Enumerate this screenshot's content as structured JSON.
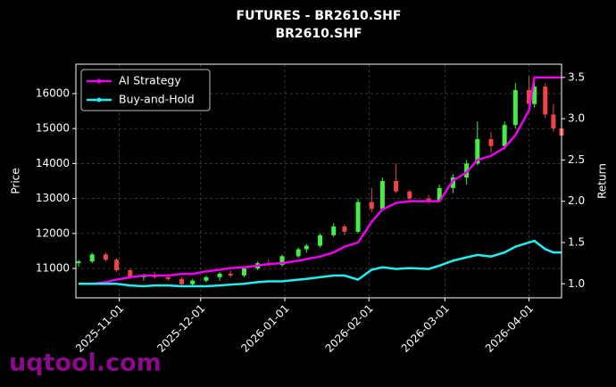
{
  "chart_data": {
    "type": "candlestick",
    "title": "FUTURES - BR2610.SHF",
    "subtitle": "BR2610.SHF",
    "y_label": "Price",
    "y2_label": "Return",
    "watermark": "uqtool.com",
    "x": [
      "2025-10-17",
      "2025-10-22",
      "2025-10-27",
      "2025-10-31",
      "2025-11-05",
      "2025-11-10",
      "2025-11-14",
      "2025-11-19",
      "2025-11-24",
      "2025-11-28",
      "2025-12-03",
      "2025-12-08",
      "2025-12-12",
      "2025-12-17",
      "2025-12-22",
      "2025-12-26",
      "2025-12-31",
      "2026-01-06",
      "2026-01-09",
      "2026-01-14",
      "2026-01-19",
      "2026-01-23",
      "2026-01-28",
      "2026-02-02",
      "2026-02-06",
      "2026-02-11",
      "2026-02-16",
      "2026-02-23",
      "2026-02-27",
      "2026-03-04",
      "2026-03-09",
      "2026-03-13",
      "2026-03-18",
      "2026-03-23",
      "2026-03-27",
      "2026-04-01",
      "2026-04-03",
      "2026-04-07",
      "2026-04-10",
      "2026-04-13"
    ],
    "open": [
      11150,
      11200,
      11400,
      11250,
      10950,
      10750,
      10800,
      10750,
      10700,
      10550,
      10650,
      10750,
      10850,
      10800,
      11000,
      11150,
      11100,
      11350,
      11550,
      11650,
      11950,
      12200,
      12050,
      12900,
      12700,
      13500,
      13200,
      13000,
      12950,
      13300,
      13600,
      14000,
      14700,
      14500,
      15100,
      16100,
      15700,
      16200,
      15400,
      15000
    ],
    "high": [
      11250,
      11450,
      11450,
      11300,
      11000,
      10850,
      10900,
      10850,
      10750,
      10700,
      10800,
      10900,
      10950,
      11050,
      11200,
      11250,
      11400,
      11600,
      11700,
      12000,
      12300,
      12250,
      13000,
      13300,
      13600,
      14000,
      13250,
      13100,
      13400,
      13700,
      14100,
      15200,
      14900,
      15200,
      16300,
      16500,
      16300,
      16300,
      15700,
      15100
    ],
    "low": [
      11050,
      11150,
      11200,
      10900,
      10700,
      10650,
      10700,
      10650,
      10500,
      10500,
      10600,
      10650,
      10750,
      10750,
      10950,
      11050,
      11050,
      11300,
      11450,
      11600,
      11900,
      11950,
      12000,
      12600,
      12650,
      13150,
      12900,
      12850,
      12900,
      13150,
      13400,
      13950,
      14300,
      14400,
      15000,
      15500,
      15600,
      15300,
      14900,
      14700
    ],
    "close": [
      11200,
      11400,
      11250,
      10950,
      10750,
      10800,
      10750,
      10700,
      10550,
      10650,
      10750,
      10850,
      10800,
      11000,
      11150,
      11100,
      11350,
      11550,
      11650,
      11950,
      12200,
      12050,
      12900,
      12700,
      13500,
      13200,
      13000,
      12950,
      13300,
      13600,
      14000,
      14700,
      14500,
      15100,
      16100,
      15700,
      16200,
      15400,
      15000,
      14800
    ],
    "up_color": "#44ee44",
    "down_color": "#ee4444",
    "series": [
      {
        "name": "AI Strategy",
        "color": "#ee00ee",
        "axis": "y2",
        "values": [
          1.0,
          1.0,
          1.02,
          1.05,
          1.08,
          1.1,
          1.1,
          1.1,
          1.12,
          1.12,
          1.15,
          1.17,
          1.19,
          1.2,
          1.22,
          1.24,
          1.25,
          1.28,
          1.3,
          1.33,
          1.38,
          1.45,
          1.5,
          1.75,
          1.9,
          1.98,
          2.0,
          2.0,
          2.0,
          2.25,
          2.35,
          2.5,
          2.55,
          2.65,
          2.8,
          3.1,
          3.5,
          3.5,
          3.5,
          3.5
        ]
      },
      {
        "name": "Buy-and-Hold",
        "color": "#22eeee",
        "axis": "y2",
        "values": [
          1.0,
          1.0,
          1.0,
          1.0,
          0.98,
          0.97,
          0.98,
          0.98,
          0.97,
          0.97,
          0.97,
          0.98,
          0.99,
          1.0,
          1.02,
          1.03,
          1.03,
          1.05,
          1.06,
          1.08,
          1.1,
          1.1,
          1.05,
          1.17,
          1.2,
          1.18,
          1.19,
          1.18,
          1.22,
          1.28,
          1.32,
          1.35,
          1.33,
          1.38,
          1.45,
          1.5,
          1.52,
          1.42,
          1.38,
          1.38
        ]
      }
    ],
    "xlim": [
      "2025-10-16",
      "2026-04-13"
    ],
    "xticks": [
      "2025-11-01",
      "2025-12-01",
      "2026-01-01",
      "2026-02-01",
      "2026-03-01",
      "2026-04-01"
    ],
    "ylim": [
      10160,
      16840
    ],
    "yticks": [
      11000,
      12000,
      13000,
      14000,
      15000,
      16000
    ],
    "y2lim": [
      0.83,
      3.66
    ],
    "y2ticks": [
      {
        "value": 1,
        "label": "1.0"
      },
      1.5,
      {
        "value": 2,
        "label": "2.0"
      },
      2.5,
      {
        "value": 3,
        "label": "3.0"
      },
      3.5
    ],
    "grid": true,
    "legend": "upper-left"
  }
}
